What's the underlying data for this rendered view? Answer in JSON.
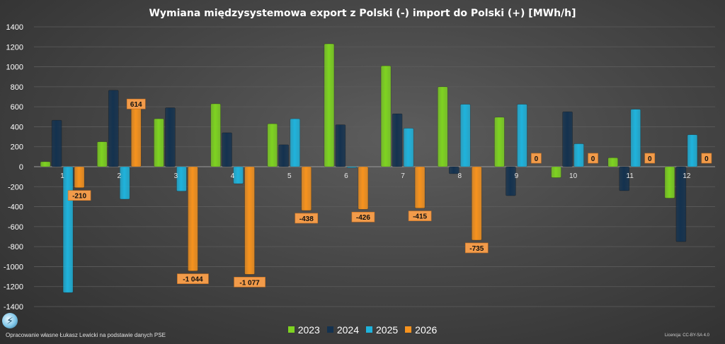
{
  "chart_data": {
    "type": "bar",
    "title": "Wymiana międzysystemowa export z Polski (-) import do Polski (+) [MWh/h]",
    "categories": [
      "1",
      "2",
      "3",
      "4",
      "5",
      "6",
      "7",
      "8",
      "9",
      "10",
      "11",
      "12"
    ],
    "ylim": [
      -1400,
      1400
    ],
    "yticks": [
      -1400,
      -1200,
      -1000,
      -800,
      -600,
      -400,
      -200,
      0,
      200,
      400,
      600,
      800,
      1000,
      1200,
      1400
    ],
    "series": [
      {
        "name": "2023",
        "color": "#7ed321",
        "values": [
          50,
          250,
          480,
          630,
          430,
          1230,
          1010,
          800,
          495,
          -110,
          90,
          -315
        ]
      },
      {
        "name": "2024",
        "color": "#14324f",
        "values": [
          465,
          765,
          590,
          340,
          220,
          420,
          530,
          -70,
          -290,
          550,
          -240,
          -750
        ]
      },
      {
        "name": "2025",
        "color": "#1fb3dc",
        "values": [
          -1260,
          -325,
          -245,
          -170,
          480,
          -10,
          385,
          625,
          625,
          230,
          575,
          320
        ]
      },
      {
        "name": "2026",
        "color": "#f7931e",
        "values": [
          -210,
          614,
          -1044,
          -1077,
          -438,
          -426,
          -415,
          -735,
          0,
          0,
          0,
          0
        ]
      }
    ],
    "data_labels": {
      "series": "2026",
      "labels": [
        "-210",
        "614",
        "-1 044",
        "-1 077",
        "-438",
        "-426",
        "-415",
        "-735",
        "0",
        "0",
        "0",
        "0"
      ]
    },
    "grid": true,
    "legend_position": "bottom"
  },
  "footer": {
    "source": "Opracowanie własne Łukasz Lewicki na podstawie danych PSE",
    "license": "Licencja: CC-BY-SA 4.0"
  }
}
